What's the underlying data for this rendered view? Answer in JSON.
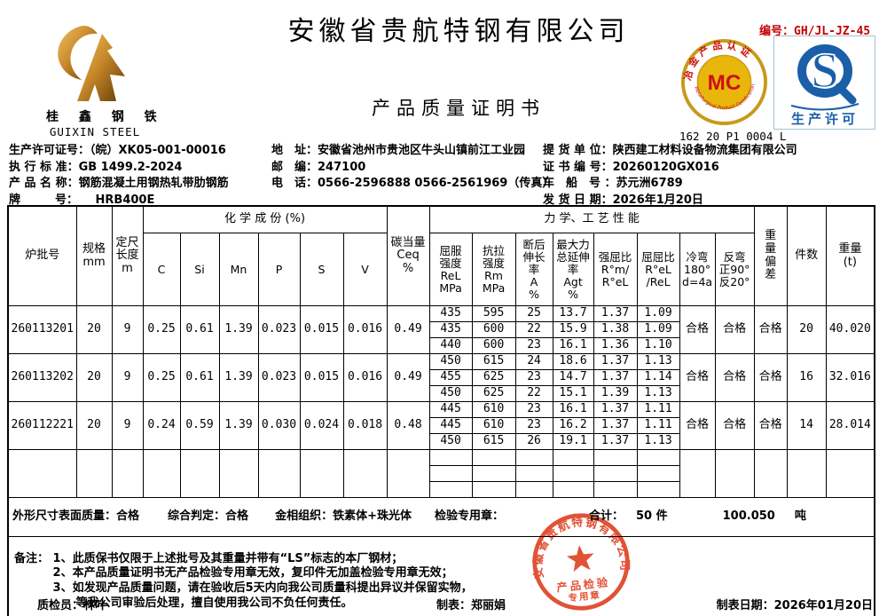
{
  "header": {
    "company": "安徽省贵航特钢有限公司",
    "doc_title": "产品质量证明书",
    "doc_no": "编号：GH/JL-JZ-45",
    "logo_cn": "桂 鑫 钢 铁",
    "logo_en": "GUIXIN STEEL",
    "mc_letters": "MC",
    "mc_top_arc": "冶金产品认证",
    "mc_bottom_arc": "Metallurgical Product Certification",
    "mc_code": "162 20 P1 0004 L",
    "sq_letter": "S",
    "sq_label": "生产许可"
  },
  "info": {
    "left": [
      {
        "label": "生产许可证号：",
        "value": "（皖）XK05-001-00016"
      },
      {
        "label": "执 行 标 准：",
        "value": "GB 1499.2-2024"
      },
      {
        "label": "产 品 名 称：",
        "value": "钢筋混凝土用钢热轧带肋钢筋"
      },
      {
        "label": "牌　　　号：",
        "value": "　　HRB400E"
      }
    ],
    "middle": [
      {
        "label": "地　址：",
        "value": "安徽省池州市贵池区牛头山镇前江工业园"
      },
      {
        "label": "邮　编：",
        "value": "247100"
      },
      {
        "label": "电　话：",
        "value": "0566-2596888  0566-2561969（传真）"
      }
    ],
    "right": [
      {
        "label": "提 货 单 位：",
        "value": "陕西建工材料设备物流集团有限公司"
      },
      {
        "label": "证 书 编 号：",
        "value": "20260120GX016"
      },
      {
        "label": "车　船　号 ：",
        "value": "苏元洲6789"
      },
      {
        "label": "发 货 日 期：",
        "value": "2026年1月20日"
      }
    ]
  },
  "table": {
    "top": {
      "chem": "化 学 成 份 (%)",
      "mech": "力 学、工 艺 性 能"
    },
    "cols": {
      "heat": "炉批号",
      "size": "规格\nmm",
      "len": "定尺\n长度\nm",
      "c": "C",
      "si": "Si",
      "mn": "Mn",
      "p": "P",
      "s": "S",
      "v": "V",
      "ceq": "碳当量\nCeq\n%",
      "rel": "屈服\n强度\nReL\nMPa",
      "rm": "抗拉\n强度\nRm\nMPa",
      "a": "断后\n伸长\n率\nA\n%",
      "agt": "最大力\n总延伸\n率\nAgt\n%",
      "ratio1": "强屈比\nR°m/\nR°eL",
      "ratio2": "屈屈比\nR°eL\n/ReL",
      "coldbend": "冷弯\n180°\nd=4a",
      "revbend": "反弯\n正90°\n反20°",
      "wdev": "重\n量\n偏\n差",
      "pieces": "件数",
      "weight": "重量\n(t)"
    },
    "groups": [
      {
        "heat_no": "260113201",
        "size": "20",
        "length": "9",
        "chem": [
          "0.25",
          "0.61",
          "1.39",
          "0.023",
          "0.015",
          "0.016",
          "0.49"
        ],
        "mech": [
          [
            "435",
            "595",
            "25",
            "13.7",
            "1.37",
            "1.09"
          ],
          [
            "435",
            "600",
            "22",
            "15.9",
            "1.38",
            "1.09"
          ],
          [
            "440",
            "600",
            "23",
            "16.1",
            "1.36",
            "1.10"
          ]
        ],
        "cold_bend": "合格",
        "reverse_bend": "合格",
        "weight_dev": "合格",
        "pieces": "20",
        "weight": "40.020"
      },
      {
        "heat_no": "260113202",
        "size": "20",
        "length": "9",
        "chem": [
          "0.25",
          "0.61",
          "1.39",
          "0.023",
          "0.015",
          "0.016",
          "0.49"
        ],
        "mech": [
          [
            "450",
            "615",
            "24",
            "18.6",
            "1.37",
            "1.13"
          ],
          [
            "455",
            "625",
            "23",
            "14.7",
            "1.37",
            "1.14"
          ],
          [
            "450",
            "625",
            "22",
            "15.1",
            "1.39",
            "1.13"
          ]
        ],
        "cold_bend": "合格",
        "reverse_bend": "合格",
        "weight_dev": "合格",
        "pieces": "16",
        "weight": "32.016"
      },
      {
        "heat_no": "260112221",
        "size": "20",
        "length": "9",
        "chem": [
          "0.24",
          "0.59",
          "1.39",
          "0.030",
          "0.024",
          "0.018",
          "0.48"
        ],
        "mech": [
          [
            "445",
            "610",
            "23",
            "16.1",
            "1.37",
            "1.11"
          ],
          [
            "445",
            "610",
            "23",
            "16.2",
            "1.37",
            "1.11"
          ],
          [
            "450",
            "615",
            "26",
            "19.1",
            "1.37",
            "1.13"
          ]
        ],
        "cold_bend": "合格",
        "reverse_bend": "合格",
        "weight_dev": "合格",
        "pieces": "14",
        "weight": "28.014"
      },
      {
        "heat_no": "",
        "size": "",
        "length": "",
        "chem": [
          "",
          "",
          "",
          "",
          "",
          "",
          ""
        ],
        "mech": [
          [
            "",
            "",
            "",
            "",
            "",
            ""
          ],
          [
            "",
            "",
            "",
            "",
            "",
            ""
          ],
          [
            "",
            "",
            "",
            "",
            "",
            ""
          ]
        ],
        "cold_bend": "",
        "reverse_bend": "",
        "weight_dev": "",
        "pieces": "",
        "weight": ""
      }
    ]
  },
  "summary": {
    "shape_label": "外形尺寸表面质量：",
    "shape_value": "合格",
    "overall_label": "综合判定：",
    "overall_value": "合格",
    "metallo_label": "金相组织：",
    "metallo_value": "铁素体+珠光体",
    "stamp_label": "检验专用章：",
    "total_label": "合计：",
    "total_pieces": "50 件",
    "total_weight": "100.050",
    "weight_unit": "吨"
  },
  "remarks": {
    "text": "备注： 1、此质保书仅限于上述批号及其重量并带有“LS”标志的本厂钢材；\n　　　 2、本产品质量证明书无产品检验专用章无效，复印件无加盖检验专用章无效；\n　　　 3、如发现产品质量问题，请在验收后5天内向我公司质量科提出异议并保留实物，\n　　　 　　等我公司审验后处理，擅自使用我公司不负任何责任。"
  },
  "stamp": {
    "company": "安徽省贵航特钢有限公司",
    "line1": "产品检验",
    "line2": "专用章"
  },
  "footer": {
    "inspector": "质检员：林叶",
    "tabulator": "制表：郑丽娟",
    "date": "制表日期：2026年01月20日"
  },
  "colors": {
    "stamp_red": "#dd4020",
    "mc_gold": "#c79a18",
    "mc_red": "#cc1111",
    "sq_blue": "#1a5fa8",
    "doc_no_red": "#c40000"
  }
}
